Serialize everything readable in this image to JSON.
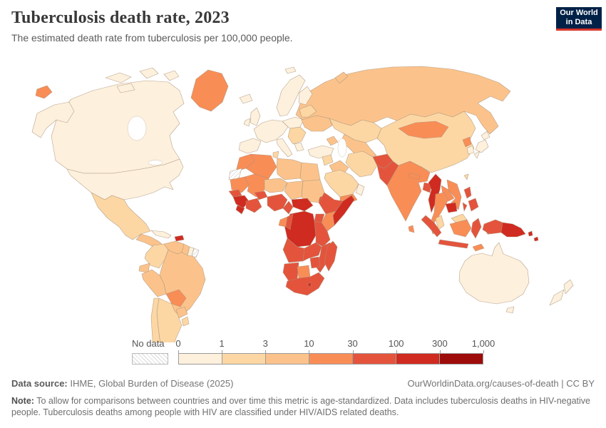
{
  "header": {
    "title": "Tuberculosis death rate, 2023",
    "subtitle": "The estimated death rate from tuberculosis per 100,000 people.",
    "logo": {
      "line1": "Our World",
      "line2": "in Data",
      "bg": "#002147",
      "accent": "#d8352a"
    }
  },
  "legend": {
    "no_data_label": "No data",
    "tick_labels": [
      "0",
      "1",
      "3",
      "10",
      "30",
      "100",
      "300",
      "1,000"
    ]
  },
  "footer": {
    "source_label": "Data source:",
    "source_value": " IHME, Global Burden of Disease (2025)",
    "citation": "OurWorldinData.org/causes-of-death | CC BY",
    "note_label": "Note:",
    "note_value": " To allow for comparisons between countries and over time this metric is age-standardized. Data includes tuberculosis deaths in HIV-negative people. Tuberculosis deaths among people with HIV are classified under HIV/AIDS related deaths."
  },
  "chart_data": {
    "type": "choropleth_map",
    "title": "Tuberculosis death rate, 2023",
    "metric": "Estimated deaths from tuberculosis per 100,000 people",
    "year": 2023,
    "scale": "log",
    "bin_edges": [
      0,
      1,
      3,
      10,
      30,
      100,
      300,
      1000
    ],
    "bin_labels": [
      "0-1",
      "1-3",
      "3-10",
      "10-30",
      "30-100",
      "100-300",
      "300-1,000"
    ],
    "bin_colors": [
      "#fdf0dc",
      "#fcd7a4",
      "#fbc38b",
      "#f98d56",
      "#e4543c",
      "#d02b20",
      "#9e0b0b"
    ],
    "no_data_style": "white with diagonal gray hatching",
    "border_color": "#a8917c",
    "regions": [
      {
        "name": "Canada",
        "bin": "0-1"
      },
      {
        "name": "United States",
        "bin": "0-1"
      },
      {
        "name": "Greenland",
        "bin": "10-30"
      },
      {
        "name": "Mexico",
        "bin": "1-3"
      },
      {
        "name": "Central America",
        "bin": "3-10"
      },
      {
        "name": "Cuba",
        "bin": "0-1"
      },
      {
        "name": "Haiti",
        "bin": "100-300"
      },
      {
        "name": "Colombia",
        "bin": "1-3"
      },
      {
        "name": "Venezuela",
        "bin": "3-10"
      },
      {
        "name": "Guyana",
        "bin": "3-10"
      },
      {
        "name": "Suriname",
        "bin": "0-1"
      },
      {
        "name": "French Guiana",
        "bin": "no data"
      },
      {
        "name": "Ecuador",
        "bin": "3-10"
      },
      {
        "name": "Peru",
        "bin": "3-10"
      },
      {
        "name": "Brazil",
        "bin": "3-10"
      },
      {
        "name": "Bolivia",
        "bin": "10-30"
      },
      {
        "name": "Paraguay",
        "bin": "3-10"
      },
      {
        "name": "Chile",
        "bin": "1-3"
      },
      {
        "name": "Argentina",
        "bin": "1-3"
      },
      {
        "name": "Uruguay",
        "bin": "1-3"
      },
      {
        "name": "Iceland",
        "bin": "0-1"
      },
      {
        "name": "United Kingdom",
        "bin": "0-1"
      },
      {
        "name": "Ireland",
        "bin": "0-1"
      },
      {
        "name": "Norway",
        "bin": "0-1"
      },
      {
        "name": "Sweden",
        "bin": "0-1"
      },
      {
        "name": "Finland",
        "bin": "0-1"
      },
      {
        "name": "Western Europe",
        "bin": "0-1"
      },
      {
        "name": "Spain",
        "bin": "0-1"
      },
      {
        "name": "Italy",
        "bin": "0-1"
      },
      {
        "name": "Poland",
        "bin": "0-1"
      },
      {
        "name": "Balkans",
        "bin": "1-3"
      },
      {
        "name": "Greece",
        "bin": "0-1"
      },
      {
        "name": "Belarus & Baltics",
        "bin": "1-3"
      },
      {
        "name": "Ukraine",
        "bin": "3-10"
      },
      {
        "name": "Turkey",
        "bin": "0-1"
      },
      {
        "name": "Russia",
        "bin": "3-10"
      },
      {
        "name": "Kazakhstan",
        "bin": "1-3"
      },
      {
        "name": "Uzbekistan & Turkmenistan",
        "bin": "3-10"
      },
      {
        "name": "Caucasus",
        "bin": "3-10"
      },
      {
        "name": "Syria & Levant",
        "bin": "1-3"
      },
      {
        "name": "Iraq",
        "bin": "3-10"
      },
      {
        "name": "Iran",
        "bin": "1-3"
      },
      {
        "name": "Saudi Arabia",
        "bin": "1-3"
      },
      {
        "name": "Yemen",
        "bin": "10-30"
      },
      {
        "name": "Oman",
        "bin": "0-1"
      },
      {
        "name": "Morocco",
        "bin": "10-30"
      },
      {
        "name": "Western Sahara",
        "bin": "no data"
      },
      {
        "name": "Algeria",
        "bin": "10-30"
      },
      {
        "name": "Tunisia",
        "bin": "1-3"
      },
      {
        "name": "Libya",
        "bin": "3-10"
      },
      {
        "name": "Egypt",
        "bin": "3-10"
      },
      {
        "name": "Mauritania",
        "bin": "10-30"
      },
      {
        "name": "Mali",
        "bin": "10-30"
      },
      {
        "name": "Niger",
        "bin": "3-10"
      },
      {
        "name": "Chad",
        "bin": "3-10"
      },
      {
        "name": "Sudan",
        "bin": "3-10"
      },
      {
        "name": "Eritrea",
        "bin": "30-100"
      },
      {
        "name": "Senegal",
        "bin": "30-100"
      },
      {
        "name": "Guinea",
        "bin": "100-300"
      },
      {
        "name": "Sierra Leone & Liberia",
        "bin": "100-300"
      },
      {
        "name": "Cote d'Ivoire & Ghana",
        "bin": "30-100"
      },
      {
        "name": "Burkina Faso",
        "bin": "30-100"
      },
      {
        "name": "Nigeria",
        "bin": "30-100"
      },
      {
        "name": "Cameroon",
        "bin": "30-100"
      },
      {
        "name": "Central African Republic",
        "bin": "100-300"
      },
      {
        "name": "Ethiopia",
        "bin": "30-100"
      },
      {
        "name": "Somalia",
        "bin": "100-300"
      },
      {
        "name": "Kenya",
        "bin": "10-30"
      },
      {
        "name": "Uganda",
        "bin": "30-100"
      },
      {
        "name": "Democratic Republic of Congo",
        "bin": "100-300"
      },
      {
        "name": "Gabon",
        "bin": "10-30"
      },
      {
        "name": "Congo",
        "bin": "30-100"
      },
      {
        "name": "Tanzania",
        "bin": "30-100"
      },
      {
        "name": "Angola",
        "bin": "30-100"
      },
      {
        "name": "Zambia",
        "bin": "30-100"
      },
      {
        "name": "Mozambique",
        "bin": "30-100"
      },
      {
        "name": "Zimbabwe",
        "bin": "30-100"
      },
      {
        "name": "Namibia",
        "bin": "30-100"
      },
      {
        "name": "Botswana",
        "bin": "10-30"
      },
      {
        "name": "South Africa",
        "bin": "30-100"
      },
      {
        "name": "Lesotho",
        "bin": "100-300"
      },
      {
        "name": "Madagascar",
        "bin": "30-100"
      },
      {
        "name": "Afghanistan",
        "bin": "30-100"
      },
      {
        "name": "Pakistan",
        "bin": "30-100"
      },
      {
        "name": "India",
        "bin": "10-30"
      },
      {
        "name": "Nepal",
        "bin": "10-30"
      },
      {
        "name": "Bangladesh",
        "bin": "30-100"
      },
      {
        "name": "Sri Lanka",
        "bin": "10-30"
      },
      {
        "name": "China",
        "bin": "1-3"
      },
      {
        "name": "Mongolia",
        "bin": "10-30"
      },
      {
        "name": "North Korea",
        "bin": "10-30"
      },
      {
        "name": "South Korea",
        "bin": "0-1"
      },
      {
        "name": "Japan",
        "bin": "0-1"
      },
      {
        "name": "Taiwan",
        "bin": "1-3"
      },
      {
        "name": "Myanmar",
        "bin": "100-300"
      },
      {
        "name": "Thailand",
        "bin": "10-30"
      },
      {
        "name": "Laos",
        "bin": "10-30"
      },
      {
        "name": "Vietnam",
        "bin": "10-30"
      },
      {
        "name": "Cambodia",
        "bin": "100-300"
      },
      {
        "name": "Malaysia",
        "bin": "1-3"
      },
      {
        "name": "Indonesia",
        "bin": "30-100"
      },
      {
        "name": "Philippines",
        "bin": "30-100"
      },
      {
        "name": "Timor",
        "bin": "10-30"
      },
      {
        "name": "Papua New Guinea",
        "bin": "100-300"
      },
      {
        "name": "Solomon Islands",
        "bin": "100-300"
      },
      {
        "name": "Australia",
        "bin": "0-1"
      },
      {
        "name": "New Zealand",
        "bin": "0-1"
      }
    ]
  }
}
